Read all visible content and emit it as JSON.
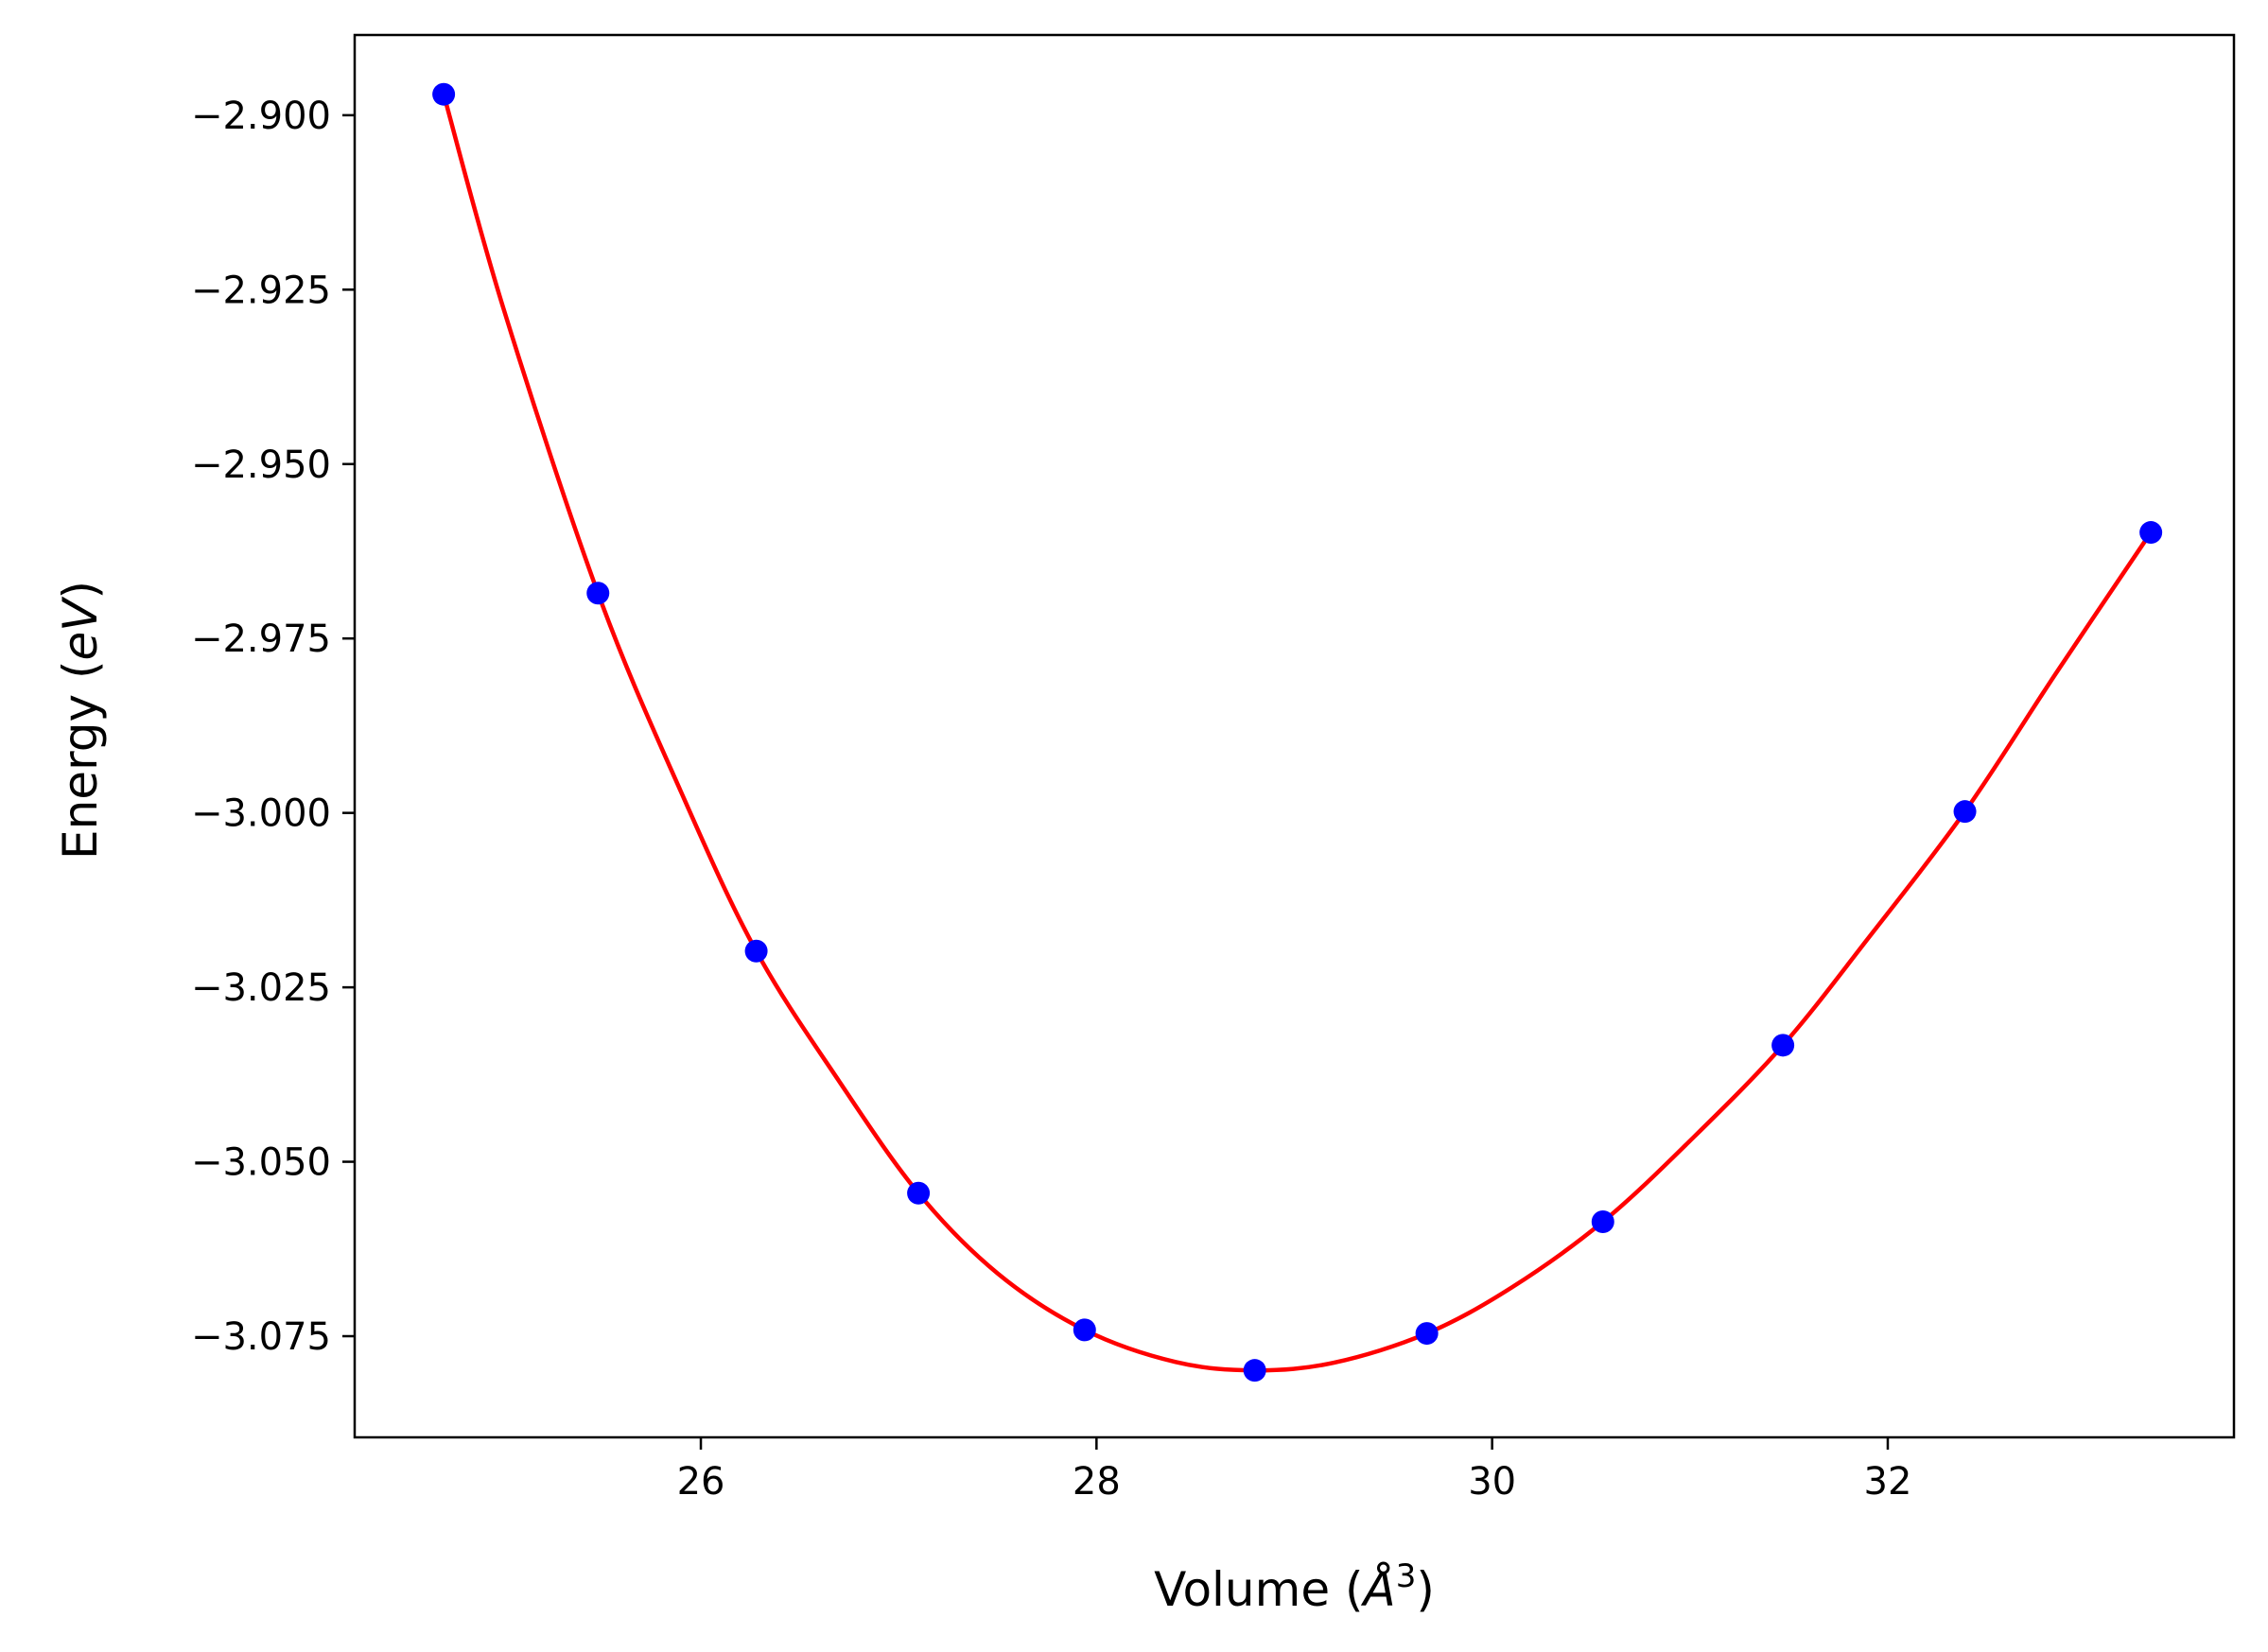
{
  "chart_data": {
    "type": "scatter",
    "title": "",
    "xlabel": "Volume (Å³)",
    "xlabel_parts": {
      "prefix": "Volume (",
      "symbol": "Å",
      "sup": "3",
      "suffix": ")"
    },
    "ylabel": "Energy (eV)",
    "ylabel_parts": {
      "prefix": "Energy (",
      "symbol": "eV",
      "suffix": ")"
    },
    "xlim": [
      24.25,
      33.75
    ],
    "ylim": [
      -3.0895,
      -2.8885
    ],
    "xticks": [
      26,
      28,
      30,
      32
    ],
    "xtick_labels": [
      "26",
      "28",
      "30",
      "32"
    ],
    "yticks": [
      -2.9,
      -2.925,
      -2.95,
      -2.975,
      -3.0,
      -3.025,
      -3.05,
      -3.075
    ],
    "ytick_labels": [
      "−2.900",
      "−2.925",
      "−2.950",
      "−2.975",
      "−3.000",
      "−3.025",
      "−3.050",
      "−3.075"
    ],
    "grid": false,
    "series": [
      {
        "kind": "points",
        "color": "#0000ff",
        "x": [
          24.7,
          25.48,
          26.28,
          27.1,
          27.94,
          28.8,
          29.67,
          30.56,
          31.47,
          32.39,
          33.33
        ],
        "y": [
          -2.897,
          -2.9685,
          -3.0198,
          -3.0545,
          -3.0741,
          -3.0799,
          -3.0746,
          -3.0586,
          -3.0333,
          -2.9998,
          -2.9598
        ]
      },
      {
        "kind": "fit-curve",
        "color": "#ff0000",
        "x": [
          24.7,
          25.0,
          25.48,
          25.9,
          26.28,
          26.7,
          27.1,
          27.5,
          27.94,
          28.4,
          28.8,
          29.2,
          29.67,
          30.1,
          30.56,
          31.0,
          31.47,
          31.9,
          32.39,
          32.85,
          33.33
        ],
        "y": [
          -2.897,
          -2.9275,
          -2.9685,
          -2.997,
          -3.0198,
          -3.0385,
          -3.0545,
          -3.066,
          -3.0741,
          -3.0787,
          -3.0799,
          -3.0788,
          -3.0746,
          -3.068,
          -3.0586,
          -3.047,
          -3.0333,
          -3.018,
          -2.9998,
          -2.98,
          -2.9598
        ]
      }
    ]
  }
}
